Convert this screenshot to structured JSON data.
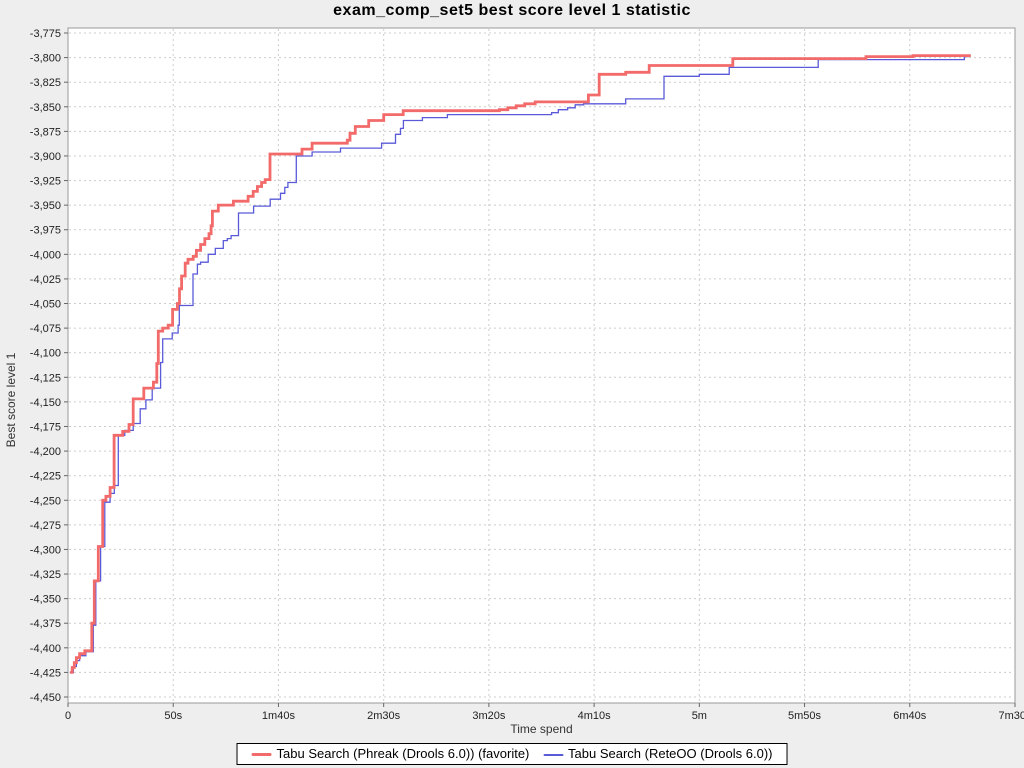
{
  "title": "exam_comp_set5 best score level 1 statistic",
  "colors": {
    "background": "#eeeeee",
    "plot_background": "#ffffff",
    "plot_border": "#9a9a9a",
    "gridline": "#cccccc",
    "tick_mark": "#666666",
    "series_red": "#f26a6a",
    "series_blue": "#5a5ad9",
    "legend_border": "#000000"
  },
  "legend": {
    "items": [
      {
        "label": "Tabu Search (Phreak (Drools 6.0)) (favorite)",
        "color": "#f26a6a",
        "thickness": 3
      },
      {
        "label": "Tabu Search (ReteOO (Drools 6.0))",
        "color": "#5a5ad9",
        "thickness": 2
      }
    ]
  },
  "chart_data": {
    "type": "line",
    "step": true,
    "title": "exam_comp_set5 best score level 1 statistic",
    "xlabel": "Time spend",
    "ylabel": "Best score level 1",
    "legend_position": "bottom",
    "grid": true,
    "x_unit": "seconds",
    "xlim_seconds": [
      0,
      450
    ],
    "ylim": [
      -4462,
      -3768
    ],
    "x_ticks": [
      {
        "label": "0",
        "t": 0
      },
      {
        "label": "50s",
        "t": 50
      },
      {
        "label": "1m40s",
        "t": 100
      },
      {
        "label": "2m30s",
        "t": 150
      },
      {
        "label": "3m20s",
        "t": 200
      },
      {
        "label": "4m10s",
        "t": 250
      },
      {
        "label": "5m",
        "t": 300
      },
      {
        "label": "5m50s",
        "t": 350
      },
      {
        "label": "6m40s",
        "t": 400
      },
      {
        "label": "7m30s",
        "t": 450
      }
    ],
    "y_ticks": [
      -3775,
      -3800,
      -3825,
      -3850,
      -3875,
      -3900,
      -3925,
      -3950,
      -3975,
      -4000,
      -4025,
      -4050,
      -4075,
      -4100,
      -4125,
      -4150,
      -4175,
      -4200,
      -4225,
      -4250,
      -4275,
      -4300,
      -4325,
      -4350,
      -4375,
      -4400,
      -4425,
      -4450
    ],
    "series": [
      {
        "name": "Tabu Search (ReteOO (Drools 6.0))",
        "color": "#5a5ad9",
        "width": 1.3,
        "points": [
          [
            1,
            -4425
          ],
          [
            2.5,
            -4419
          ],
          [
            4,
            -4413
          ],
          [
            5.5,
            -4408
          ],
          [
            8.5,
            -4404
          ],
          [
            12,
            -4377
          ],
          [
            13.2,
            -4332
          ],
          [
            15.5,
            -4297
          ],
          [
            17.5,
            -4252
          ],
          [
            20,
            -4243
          ],
          [
            22,
            -4235
          ],
          [
            23.9,
            -4184
          ],
          [
            27,
            -4179
          ],
          [
            31,
            -4172
          ],
          [
            34.3,
            -4157
          ],
          [
            37,
            -4148
          ],
          [
            40,
            -4136
          ],
          [
            44,
            -4110
          ],
          [
            45,
            -4086
          ],
          [
            49.5,
            -4080
          ],
          [
            52.3,
            -4072
          ],
          [
            52.9,
            -4052
          ],
          [
            59.4,
            -4020
          ],
          [
            61.5,
            -4010
          ],
          [
            63,
            -4008
          ],
          [
            66.6,
            -4000
          ],
          [
            70,
            -3994
          ],
          [
            73.8,
            -3986
          ],
          [
            75.7,
            -3984
          ],
          [
            77.5,
            -3981
          ],
          [
            81,
            -3958
          ],
          [
            88.2,
            -3951
          ],
          [
            96.1,
            -3944
          ],
          [
            101,
            -3938
          ],
          [
            103,
            -3932
          ],
          [
            104.5,
            -3927
          ],
          [
            108.5,
            -3900
          ],
          [
            116,
            -3896
          ],
          [
            129.5,
            -3892
          ],
          [
            149,
            -3887
          ],
          [
            155.6,
            -3878
          ],
          [
            158,
            -3872
          ],
          [
            159.4,
            -3864
          ],
          [
            168.4,
            -3861
          ],
          [
            180.3,
            -3858
          ],
          [
            229.8,
            -3856
          ],
          [
            233,
            -3853
          ],
          [
            237.4,
            -3851
          ],
          [
            241,
            -3848
          ],
          [
            245,
            -3847
          ],
          [
            265,
            -3842
          ],
          [
            283.2,
            -3819
          ],
          [
            300,
            -3817
          ],
          [
            314.2,
            -3810
          ],
          [
            356.5,
            -3802
          ],
          [
            425.9,
            -3799
          ],
          [
            428,
            -3799
          ]
        ]
      },
      {
        "name": "Tabu Search (Phreak (Drools 6.0)) (favorite)",
        "color": "#f26a6a",
        "width": 2.8,
        "points": [
          [
            1,
            -4425
          ],
          [
            2,
            -4420
          ],
          [
            3,
            -4415
          ],
          [
            4,
            -4410
          ],
          [
            5.5,
            -4406
          ],
          [
            8,
            -4403
          ],
          [
            11.3,
            -4375
          ],
          [
            12.5,
            -4332
          ],
          [
            14.4,
            -4297
          ],
          [
            16.5,
            -4250
          ],
          [
            18,
            -4246
          ],
          [
            20,
            -4237
          ],
          [
            21.9,
            -4184
          ],
          [
            26,
            -4180
          ],
          [
            29,
            -4173
          ],
          [
            31,
            -4147
          ],
          [
            36,
            -4136
          ],
          [
            40.6,
            -4130
          ],
          [
            42.2,
            -4111
          ],
          [
            42.9,
            -4078
          ],
          [
            45,
            -4075
          ],
          [
            47.6,
            -4072
          ],
          [
            49.7,
            -4056
          ],
          [
            52,
            -4050
          ],
          [
            53,
            -4035
          ],
          [
            54,
            -4022
          ],
          [
            55.7,
            -4009
          ],
          [
            57,
            -4005
          ],
          [
            59.5,
            -4002
          ],
          [
            61,
            -3996
          ],
          [
            63,
            -3990
          ],
          [
            65,
            -3984
          ],
          [
            67,
            -3979
          ],
          [
            68,
            -3971
          ],
          [
            68.6,
            -3956
          ],
          [
            71.4,
            -3950
          ],
          [
            78.6,
            -3946
          ],
          [
            85.6,
            -3941
          ],
          [
            88,
            -3936
          ],
          [
            90,
            -3931
          ],
          [
            92,
            -3927
          ],
          [
            93.7,
            -3924
          ],
          [
            96,
            -3898
          ],
          [
            111.2,
            -3893
          ],
          [
            116,
            -3887
          ],
          [
            132.7,
            -3884
          ],
          [
            134,
            -3877
          ],
          [
            136.5,
            -3870
          ],
          [
            142.9,
            -3864
          ],
          [
            150,
            -3858
          ],
          [
            159.3,
            -3854
          ],
          [
            205,
            -3853
          ],
          [
            209,
            -3851
          ],
          [
            213,
            -3849
          ],
          [
            217,
            -3847
          ],
          [
            222,
            -3845
          ],
          [
            247.3,
            -3838
          ],
          [
            252.4,
            -3817
          ],
          [
            265,
            -3815
          ],
          [
            276.2,
            -3808
          ],
          [
            315.9,
            -3801
          ],
          [
            379.2,
            -3799
          ],
          [
            401.5,
            -3798
          ],
          [
            429,
            -3798
          ]
        ]
      }
    ]
  }
}
